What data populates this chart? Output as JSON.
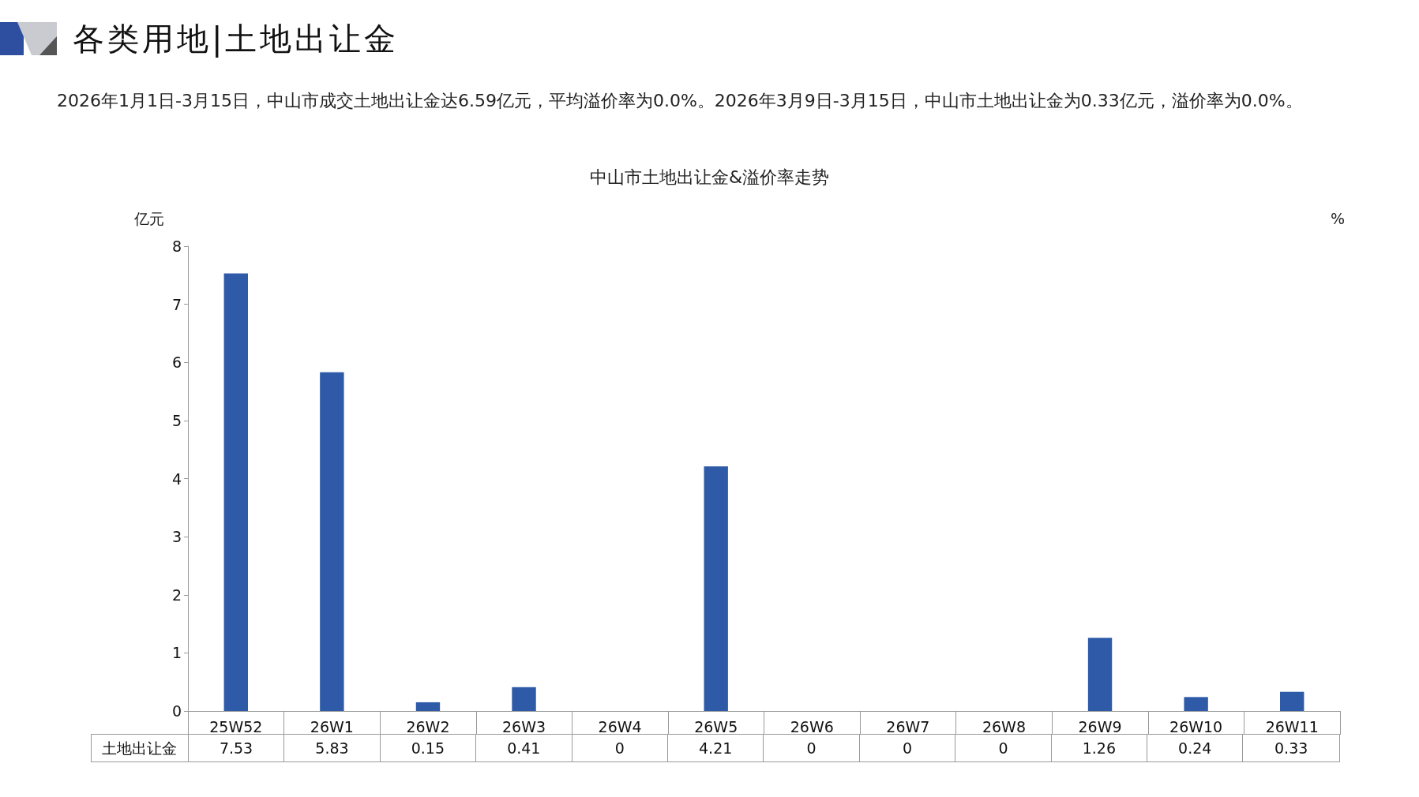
{
  "chart_data": {
    "type": "bar",
    "title": "中山市土地出让金&溢价率走势",
    "annotations": [
      "各类用地|土地出让金",
      "2026年1月1日-3月15日，中山市成交土地出让金达6.59亿元，平均溢价率为0.0%。2026年3月9日-3月15日，中山市土地出让金为0.33亿元，溢价率为0.0%。"
    ],
    "ylabel": "亿元",
    "y2label": "%",
    "categories": [
      "25W52",
      "26W1",
      "26W2",
      "26W3",
      "26W4",
      "26W5",
      "26W6",
      "26W7",
      "26W8",
      "26W9",
      "26W10",
      "26W11"
    ],
    "series": [
      {
        "name": "土地出让金",
        "color": "#2e5aa8",
        "values": [
          7.53,
          5.83,
          0.15,
          0.41,
          0,
          4.21,
          0,
          0,
          0,
          1.26,
          0.24,
          0.33
        ]
      }
    ],
    "ylim": [
      0,
      8
    ],
    "yticks": [
      0,
      1,
      2,
      3,
      4,
      5,
      6,
      7,
      8
    ],
    "data_labels": true,
    "grid": false,
    "legend": false
  }
}
